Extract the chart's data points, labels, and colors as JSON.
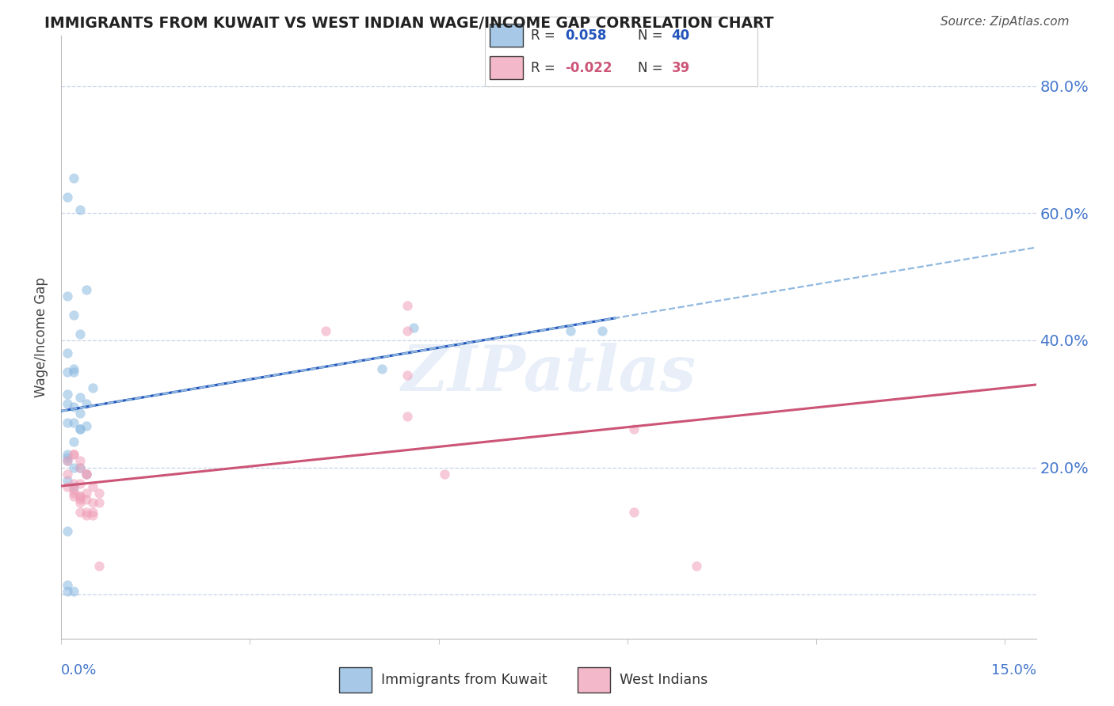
{
  "title": "IMMIGRANTS FROM KUWAIT VS WEST INDIAN WAGE/INCOME GAP CORRELATION CHART",
  "source": "Source: ZipAtlas.com",
  "ylabel": "Wage/Income Gap",
  "xlim": [
    0.0,
    0.155
  ],
  "ylim": [
    -0.07,
    0.88
  ],
  "yticks": [
    0.0,
    0.2,
    0.4,
    0.6,
    0.8
  ],
  "ytick_labels": [
    "",
    "20.0%",
    "40.0%",
    "60.0%",
    "80.0%"
  ],
  "legend_r_kuwait": "0.058",
  "legend_n_kuwait": "40",
  "legend_r_westindian": "-0.022",
  "legend_n_westindian": "39",
  "kuwait_color": "#8ab8e0",
  "westindian_color": "#f0a0b8",
  "kuwait_line_color": "#2255bb",
  "westindian_line_color": "#cc5577",
  "dashed_line_color": "#90b8e0",
  "marker_size": 80,
  "marker_alpha": 0.55,
  "kuwait_x": [
    0.001,
    0.002,
    0.003,
    0.005,
    0.001,
    0.002,
    0.003,
    0.004,
    0.001,
    0.002,
    0.003,
    0.001,
    0.002,
    0.003,
    0.004,
    0.002,
    0.003,
    0.002,
    0.001,
    0.001,
    0.001,
    0.002,
    0.003,
    0.004,
    0.001,
    0.002,
    0.001,
    0.002,
    0.001,
    0.001,
    0.051,
    0.056,
    0.081,
    0.086,
    0.001,
    0.003,
    0.004,
    0.001,
    0.002,
    0.001
  ],
  "kuwait_y": [
    0.315,
    0.295,
    0.285,
    0.325,
    0.625,
    0.655,
    0.605,
    0.48,
    0.47,
    0.44,
    0.41,
    0.38,
    0.355,
    0.31,
    0.3,
    0.27,
    0.26,
    0.24,
    0.22,
    0.215,
    0.21,
    0.2,
    0.2,
    0.19,
    0.18,
    0.17,
    0.1,
    0.005,
    0.005,
    0.015,
    0.355,
    0.42,
    0.415,
    0.415,
    0.27,
    0.26,
    0.265,
    0.35,
    0.35,
    0.3
  ],
  "westindian_x": [
    0.001,
    0.003,
    0.001,
    0.002,
    0.003,
    0.004,
    0.002,
    0.003,
    0.004,
    0.002,
    0.003,
    0.003,
    0.003,
    0.004,
    0.005,
    0.006,
    0.004,
    0.005,
    0.003,
    0.004,
    0.005,
    0.055,
    0.042,
    0.055,
    0.055,
    0.001,
    0.002,
    0.002,
    0.003,
    0.055,
    0.061,
    0.091,
    0.091,
    0.101,
    0.002,
    0.004,
    0.005,
    0.006,
    0.006
  ],
  "westindian_y": [
    0.19,
    0.21,
    0.21,
    0.22,
    0.2,
    0.19,
    0.175,
    0.175,
    0.16,
    0.155,
    0.155,
    0.15,
    0.145,
    0.15,
    0.145,
    0.145,
    0.13,
    0.13,
    0.13,
    0.125,
    0.125,
    0.415,
    0.415,
    0.28,
    0.455,
    0.17,
    0.165,
    0.16,
    0.155,
    0.345,
    0.19,
    0.26,
    0.13,
    0.045,
    0.22,
    0.19,
    0.17,
    0.16,
    0.045
  ],
  "watermark": "ZIPatlas",
  "background_color": "#ffffff",
  "grid_color": "#c8d4e8",
  "title_color": "#222222",
  "axis_label_color": "#4477cc",
  "right_yaxis_color": "#4477cc",
  "source_color": "#555555"
}
